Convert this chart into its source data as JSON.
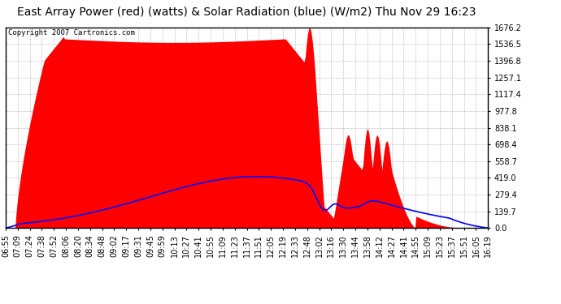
{
  "title": "East Array Power (red) (watts) & Solar Radiation (blue) (W/m2) Thu Nov 29 16:23",
  "copyright": "Copyright 2007 Cartronics.com",
  "y_ticks": [
    0.0,
    139.7,
    279.4,
    419.0,
    558.7,
    698.4,
    838.1,
    977.8,
    1117.4,
    1257.1,
    1396.8,
    1536.5,
    1676.2
  ],
  "ylim": [
    0,
    1676.2
  ],
  "x_labels": [
    "06:55",
    "07:09",
    "07:24",
    "07:38",
    "07:52",
    "08:06",
    "08:20",
    "08:34",
    "08:48",
    "09:02",
    "09:17",
    "09:31",
    "09:45",
    "09:59",
    "10:13",
    "10:27",
    "10:41",
    "10:55",
    "11:09",
    "11:23",
    "11:37",
    "11:51",
    "12:05",
    "12:19",
    "12:33",
    "12:48",
    "13:02",
    "13:16",
    "13:30",
    "13:44",
    "13:58",
    "14:12",
    "14:27",
    "14:41",
    "14:55",
    "15:09",
    "15:23",
    "15:37",
    "15:51",
    "16:05",
    "16:19"
  ],
  "background_color": "#ffffff",
  "plot_background": "#ffffff",
  "grid_color": "#aaaaaa",
  "fill_color": "#ff0000",
  "line_color": "#0000ff",
  "title_fontsize": 10,
  "tick_fontsize": 7,
  "n_points": 410
}
